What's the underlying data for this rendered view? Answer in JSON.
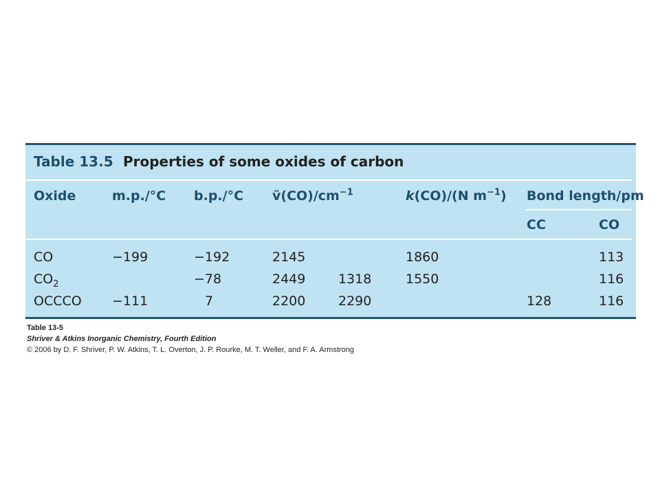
{
  "table": {
    "number": "Table 13.5",
    "caption": "Properties of some oxides of carbon",
    "headers": {
      "oxide": "Oxide",
      "mp": "m.p./°C",
      "bp": "b.p./°C",
      "wavenumber_pre": "ṽ(CO)/cm",
      "wavenumber_sup": "−1",
      "k_pre": "k",
      "k_mid": "(CO)/(N m",
      "k_sup": "−1",
      "k_post": ")",
      "bond_length": "Bond length/pm",
      "cc": "CC",
      "co": "CO"
    },
    "rows": [
      {
        "oxide": "CO",
        "oxide_sub": "",
        "mp": "−199",
        "bp": "−192",
        "nu1": "2145",
        "nu2": "",
        "k": "1860",
        "cc": "",
        "co": "113"
      },
      {
        "oxide": "CO",
        "oxide_sub": "2",
        "mp": "",
        "bp": "−78",
        "nu1": "2449",
        "nu2": "1318",
        "k": "1550",
        "cc": "",
        "co": "116"
      },
      {
        "oxide": "OCCCO",
        "oxide_sub": "",
        "mp": "−111",
        "bp": "7",
        "nu1": "2200",
        "nu2": "2290",
        "k": "",
        "cc": "128",
        "co": "116"
      }
    ]
  },
  "credit": {
    "label": "Table 13-5",
    "book": "Shriver & Atkins Inorganic Chemistry, Fourth Edition",
    "copyright": "© 2006 by D. F. Shriver, P. W. Atkins, T. L. Overton, J. P. Rourke, M. T. Weller, and F. A. Armstrong"
  }
}
